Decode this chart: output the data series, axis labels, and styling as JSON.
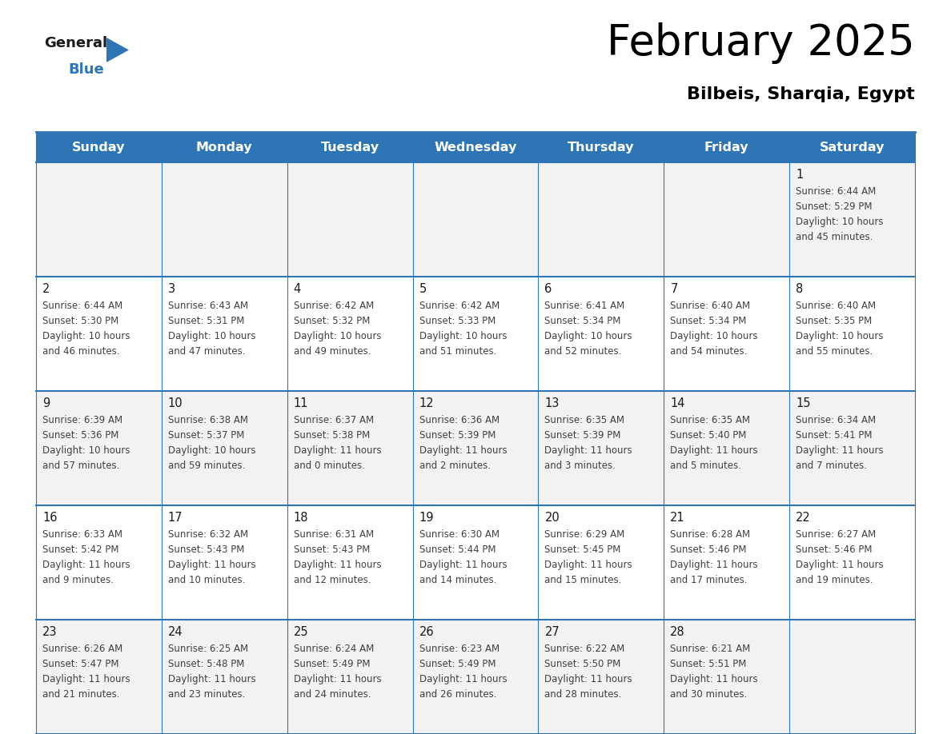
{
  "title": "February 2025",
  "subtitle": "Bilbeis, Sharqia, Egypt",
  "days_of_week": [
    "Sunday",
    "Monday",
    "Tuesday",
    "Wednesday",
    "Thursday",
    "Friday",
    "Saturday"
  ],
  "header_bg": "#2E75B6",
  "header_text_color": "#FFFFFF",
  "cell_bg_odd": "#F2F2F2",
  "cell_bg_even": "#FFFFFF",
  "border_color": "#2E75B6",
  "day_num_color": "#1a1a1a",
  "cell_text_color": "#404040",
  "title_color": "#000000",
  "subtitle_color": "#000000",
  "logo_black_color": "#1a1a1a",
  "logo_blue_color": "#2E75B6",
  "calendar_data": [
    {
      "day": 1,
      "row": 0,
      "col": 6,
      "sunrise": "6:44 AM",
      "sunset": "5:29 PM",
      "daylight": "10 hours and 45 minutes."
    },
    {
      "day": 2,
      "row": 1,
      "col": 0,
      "sunrise": "6:44 AM",
      "sunset": "5:30 PM",
      "daylight": "10 hours and 46 minutes."
    },
    {
      "day": 3,
      "row": 1,
      "col": 1,
      "sunrise": "6:43 AM",
      "sunset": "5:31 PM",
      "daylight": "10 hours and 47 minutes."
    },
    {
      "day": 4,
      "row": 1,
      "col": 2,
      "sunrise": "6:42 AM",
      "sunset": "5:32 PM",
      "daylight": "10 hours and 49 minutes."
    },
    {
      "day": 5,
      "row": 1,
      "col": 3,
      "sunrise": "6:42 AM",
      "sunset": "5:33 PM",
      "daylight": "10 hours and 51 minutes."
    },
    {
      "day": 6,
      "row": 1,
      "col": 4,
      "sunrise": "6:41 AM",
      "sunset": "5:34 PM",
      "daylight": "10 hours and 52 minutes."
    },
    {
      "day": 7,
      "row": 1,
      "col": 5,
      "sunrise": "6:40 AM",
      "sunset": "5:34 PM",
      "daylight": "10 hours and 54 minutes."
    },
    {
      "day": 8,
      "row": 1,
      "col": 6,
      "sunrise": "6:40 AM",
      "sunset": "5:35 PM",
      "daylight": "10 hours and 55 minutes."
    },
    {
      "day": 9,
      "row": 2,
      "col": 0,
      "sunrise": "6:39 AM",
      "sunset": "5:36 PM",
      "daylight": "10 hours and 57 minutes."
    },
    {
      "day": 10,
      "row": 2,
      "col": 1,
      "sunrise": "6:38 AM",
      "sunset": "5:37 PM",
      "daylight": "10 hours and 59 minutes."
    },
    {
      "day": 11,
      "row": 2,
      "col": 2,
      "sunrise": "6:37 AM",
      "sunset": "5:38 PM",
      "daylight": "11 hours and 0 minutes."
    },
    {
      "day": 12,
      "row": 2,
      "col": 3,
      "sunrise": "6:36 AM",
      "sunset": "5:39 PM",
      "daylight": "11 hours and 2 minutes."
    },
    {
      "day": 13,
      "row": 2,
      "col": 4,
      "sunrise": "6:35 AM",
      "sunset": "5:39 PM",
      "daylight": "11 hours and 3 minutes."
    },
    {
      "day": 14,
      "row": 2,
      "col": 5,
      "sunrise": "6:35 AM",
      "sunset": "5:40 PM",
      "daylight": "11 hours and 5 minutes."
    },
    {
      "day": 15,
      "row": 2,
      "col": 6,
      "sunrise": "6:34 AM",
      "sunset": "5:41 PM",
      "daylight": "11 hours and 7 minutes."
    },
    {
      "day": 16,
      "row": 3,
      "col": 0,
      "sunrise": "6:33 AM",
      "sunset": "5:42 PM",
      "daylight": "11 hours and 9 minutes."
    },
    {
      "day": 17,
      "row": 3,
      "col": 1,
      "sunrise": "6:32 AM",
      "sunset": "5:43 PM",
      "daylight": "11 hours and 10 minutes."
    },
    {
      "day": 18,
      "row": 3,
      "col": 2,
      "sunrise": "6:31 AM",
      "sunset": "5:43 PM",
      "daylight": "11 hours and 12 minutes."
    },
    {
      "day": 19,
      "row": 3,
      "col": 3,
      "sunrise": "6:30 AM",
      "sunset": "5:44 PM",
      "daylight": "11 hours and 14 minutes."
    },
    {
      "day": 20,
      "row": 3,
      "col": 4,
      "sunrise": "6:29 AM",
      "sunset": "5:45 PM",
      "daylight": "11 hours and 15 minutes."
    },
    {
      "day": 21,
      "row": 3,
      "col": 5,
      "sunrise": "6:28 AM",
      "sunset": "5:46 PM",
      "daylight": "11 hours and 17 minutes."
    },
    {
      "day": 22,
      "row": 3,
      "col": 6,
      "sunrise": "6:27 AM",
      "sunset": "5:46 PM",
      "daylight": "11 hours and 19 minutes."
    },
    {
      "day": 23,
      "row": 4,
      "col": 0,
      "sunrise": "6:26 AM",
      "sunset": "5:47 PM",
      "daylight": "11 hours and 21 minutes."
    },
    {
      "day": 24,
      "row": 4,
      "col": 1,
      "sunrise": "6:25 AM",
      "sunset": "5:48 PM",
      "daylight": "11 hours and 23 minutes."
    },
    {
      "day": 25,
      "row": 4,
      "col": 2,
      "sunrise": "6:24 AM",
      "sunset": "5:49 PM",
      "daylight": "11 hours and 24 minutes."
    },
    {
      "day": 26,
      "row": 4,
      "col": 3,
      "sunrise": "6:23 AM",
      "sunset": "5:49 PM",
      "daylight": "11 hours and 26 minutes."
    },
    {
      "day": 27,
      "row": 4,
      "col": 4,
      "sunrise": "6:22 AM",
      "sunset": "5:50 PM",
      "daylight": "11 hours and 28 minutes."
    },
    {
      "day": 28,
      "row": 4,
      "col": 5,
      "sunrise": "6:21 AM",
      "sunset": "5:51 PM",
      "daylight": "11 hours and 30 minutes."
    }
  ]
}
